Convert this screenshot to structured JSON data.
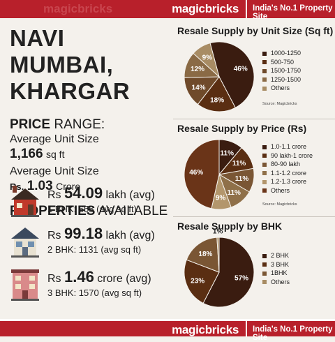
{
  "header": {
    "brand": "magicbricks",
    "tagline": "India's No.1 Property Site",
    "faint_text": "magicbricks"
  },
  "footer": {
    "brand": "magicbricks",
    "tagline": "India's No.1 Property Site"
  },
  "location": {
    "line1": "NAVI MUMBAI,",
    "line2": "KHARGAR"
  },
  "price_range": {
    "heading_bold": "PRICE",
    "heading_rest": " RANGE:",
    "avg_unit_size_label": "Average Unit Size",
    "avg_unit_size_value": "1,166",
    "avg_unit_size_unit": "sq ft",
    "avg_unit_size_label2": "Average Unit Size",
    "price_prefix": "Rs.",
    "price_value": "1.03",
    "price_unit": "Crore"
  },
  "properties": {
    "heading_bold": "PROPERTIES",
    "heading_rest": " AVAILABLE",
    "items": [
      {
        "prefix": "Rs",
        "value": "54.09",
        "suffix": "lakh (avg)",
        "bhk": "1 BHK: 655 (avg sq ft)",
        "icon": "house-icon"
      },
      {
        "prefix": "Rs",
        "value": "99.18",
        "suffix": "lakh (avg)",
        "bhk": "2 BHK: 1131 (avg sq ft)",
        "icon": "villa-icon"
      },
      {
        "prefix": "Rs",
        "value": "1.46",
        "suffix": "crore (avg)",
        "bhk": "3 BHK: 1570 (avg sq ft)",
        "icon": "apartment-icon"
      }
    ]
  },
  "chart_data": [
    {
      "type": "pie",
      "title": "Resale Supply by Unit Size (Sq ft)",
      "source": "Source: Magicbricks",
      "legend_placement": "right",
      "categories": [
        "1000-1250",
        "500-750",
        "1500-1750",
        "1250-1500",
        "Others"
      ],
      "values": [
        46,
        18,
        14,
        12,
        9
      ],
      "colors": [
        "#3a1c10",
        "#5a2e12",
        "#6f4a2a",
        "#8a6a45",
        "#a88c64"
      ]
    },
    {
      "type": "pie",
      "title": "Resale Supply by Price (Rs)",
      "source": "Source: Magicbricks",
      "legend_placement": "right",
      "categories": [
        "1.0-1.1 crore",
        "90 lakh-1 crore",
        "80-90 lakh",
        "1.1-1.2 crore",
        "1.2-1.3 crore",
        "Others"
      ],
      "values": [
        11,
        11,
        11,
        11,
        9,
        46
      ],
      "colors": [
        "#3a1c10",
        "#5a2e12",
        "#7a5634",
        "#8f7049",
        "#b3966c",
        "#6a3418"
      ]
    },
    {
      "type": "pie",
      "title": "Resale Supply by BHK",
      "source": "Source: Magicbricks",
      "legend_placement": "right",
      "categories": [
        "2 BHK",
        "3 BHK",
        "1BHK",
        "Others"
      ],
      "values": [
        57,
        23,
        18,
        1
      ],
      "colors": [
        "#3a1c10",
        "#5a2e12",
        "#7a5634",
        "#a88c64"
      ]
    }
  ]
}
